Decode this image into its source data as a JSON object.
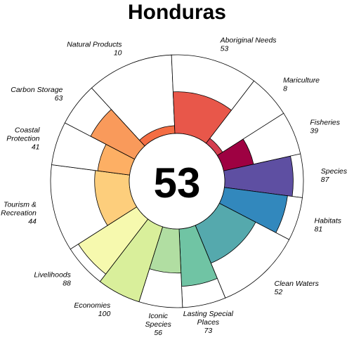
{
  "chart_data": {
    "type": "flower",
    "title": "Honduras",
    "overall_score": 53,
    "max_value": 100,
    "petals": [
      {
        "label_lines": [
          "Natural Products"
        ],
        "value": 10,
        "weight": 1.0,
        "color": "#F46D43"
      },
      {
        "label_lines": [
          "Aboriginal Needs"
        ],
        "value": 53,
        "weight": 1.0,
        "color": "#E8574A"
      },
      {
        "label_lines": [
          "Mariculture"
        ],
        "value": 8,
        "weight": 0.5,
        "color": "#D53E4F"
      },
      {
        "label_lines": [
          "Fisheries"
        ],
        "value": 39,
        "weight": 0.5,
        "color": "#9E0142"
      },
      {
        "label_lines": [
          "Species"
        ],
        "value": 87,
        "weight": 0.5,
        "color": "#5E4FA2"
      },
      {
        "label_lines": [
          "Habitats"
        ],
        "value": 81,
        "weight": 0.5,
        "color": "#3288BD"
      },
      {
        "label_lines": [
          "Clean Waters"
        ],
        "value": 52,
        "weight": 1.0,
        "color": "#55A9AD"
      },
      {
        "label_lines": [
          "Lasting Special",
          "Places"
        ],
        "value": 73,
        "weight": 0.5,
        "color": "#70C4A4"
      },
      {
        "label_lines": [
          "Iconic",
          "Species"
        ],
        "value": 56,
        "weight": 0.5,
        "color": "#B1DEA2"
      },
      {
        "label_lines": [
          "Economies"
        ],
        "value": 100,
        "weight": 0.5,
        "color": "#D9EF9B"
      },
      {
        "label_lines": [
          "Livelihoods"
        ],
        "value": 88,
        "weight": 0.5,
        "color": "#F6F9AE"
      },
      {
        "label_lines": [
          "Tourism &",
          "Recreation"
        ],
        "value": 44,
        "weight": 1.0,
        "color": "#FDCE7C"
      },
      {
        "label_lines": [
          "Coastal",
          "Protection"
        ],
        "value": 41,
        "weight": 0.5,
        "color": "#FDAF64"
      },
      {
        "label_lines": [
          "Carbon Storage"
        ],
        "value": 63,
        "weight": 0.5,
        "color": "#F99A5B"
      }
    ]
  }
}
